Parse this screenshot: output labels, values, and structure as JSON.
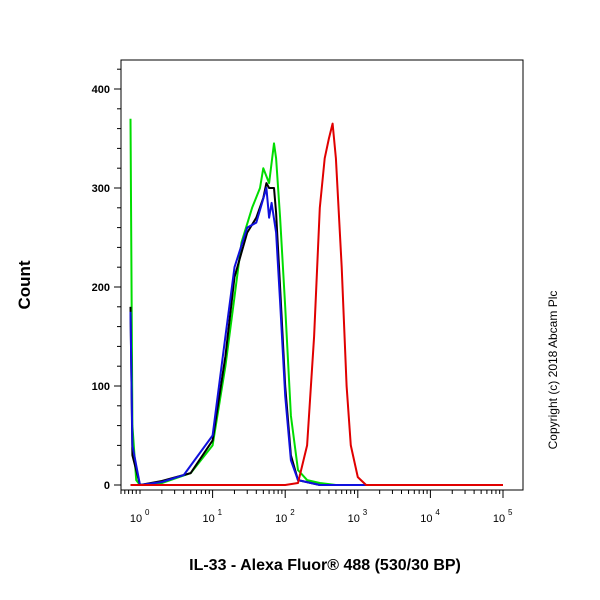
{
  "chart_data": {
    "type": "line",
    "xlabel": "IL-33 - Alexa Fluor® 488 (530/30 BP)",
    "ylabel": "Count",
    "x_scale": "biexponential",
    "ylim": [
      0,
      440
    ],
    "y_ticks": [
      0,
      100,
      200,
      300,
      400
    ],
    "x_ticks": [
      {
        "base": "10",
        "exp": "0",
        "value": 1
      },
      {
        "base": "10",
        "exp": "1",
        "value": 10
      },
      {
        "base": "10",
        "exp": "2",
        "value": 100
      },
      {
        "base": "10",
        "exp": "3",
        "value": 1000
      },
      {
        "base": "10",
        "exp": "4",
        "value": 10000
      },
      {
        "base": "10",
        "exp": "5",
        "value": 100000
      }
    ],
    "annotation": "Copyright (c) 2018 Abcam Plc",
    "series": [
      {
        "color": "#00dd00",
        "points": [
          [
            0.5,
            370
          ],
          [
            0.6,
            60
          ],
          [
            0.8,
            5
          ],
          [
            1,
            0
          ],
          [
            2,
            2
          ],
          [
            5,
            12
          ],
          [
            10,
            40
          ],
          [
            15,
            120
          ],
          [
            20,
            190
          ],
          [
            25,
            245
          ],
          [
            35,
            280
          ],
          [
            45,
            300
          ],
          [
            50,
            320
          ],
          [
            60,
            305
          ],
          [
            70,
            345
          ],
          [
            75,
            330
          ],
          [
            85,
            270
          ],
          [
            100,
            180
          ],
          [
            120,
            70
          ],
          [
            150,
            15
          ],
          [
            200,
            5
          ],
          [
            300,
            2
          ],
          [
            500,
            0
          ],
          [
            1000,
            0
          ],
          [
            10000,
            0
          ],
          [
            100000,
            0
          ]
        ]
      },
      {
        "color": "#000000",
        "points": [
          [
            0.5,
            180
          ],
          [
            0.6,
            30
          ],
          [
            1,
            0
          ],
          [
            2,
            4
          ],
          [
            5,
            12
          ],
          [
            10,
            45
          ],
          [
            15,
            130
          ],
          [
            20,
            210
          ],
          [
            30,
            255
          ],
          [
            40,
            270
          ],
          [
            50,
            290
          ],
          [
            55,
            305
          ],
          [
            60,
            300
          ],
          [
            70,
            300
          ],
          [
            75,
            275
          ],
          [
            85,
            200
          ],
          [
            100,
            100
          ],
          [
            120,
            30
          ],
          [
            150,
            5
          ],
          [
            300,
            0
          ],
          [
            100000,
            0
          ]
        ]
      },
      {
        "color": "#1010dd",
        "points": [
          [
            0.5,
            175
          ],
          [
            0.6,
            40
          ],
          [
            1,
            0
          ],
          [
            2,
            3
          ],
          [
            4,
            10
          ],
          [
            10,
            50
          ],
          [
            15,
            150
          ],
          [
            20,
            220
          ],
          [
            30,
            260
          ],
          [
            40,
            265
          ],
          [
            55,
            300
          ],
          [
            60,
            270
          ],
          [
            65,
            285
          ],
          [
            75,
            255
          ],
          [
            85,
            185
          ],
          [
            100,
            90
          ],
          [
            120,
            25
          ],
          [
            150,
            5
          ],
          [
            300,
            0
          ],
          [
            100000,
            0
          ]
        ]
      },
      {
        "color": "#e00000",
        "points": [
          [
            0.5,
            0
          ],
          [
            100,
            0
          ],
          [
            150,
            2
          ],
          [
            200,
            40
          ],
          [
            250,
            150
          ],
          [
            300,
            280
          ],
          [
            350,
            330
          ],
          [
            400,
            350
          ],
          [
            450,
            365
          ],
          [
            500,
            330
          ],
          [
            600,
            220
          ],
          [
            700,
            100
          ],
          [
            800,
            40
          ],
          [
            1000,
            8
          ],
          [
            1300,
            0
          ],
          [
            100000,
            0
          ]
        ]
      }
    ]
  }
}
